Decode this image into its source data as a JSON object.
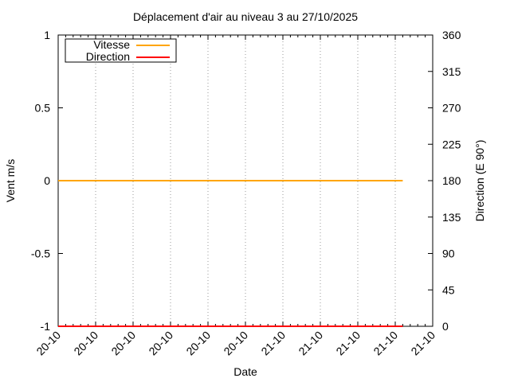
{
  "chart_data": {
    "type": "line",
    "title": "Déplacement d'air au niveau 3 au 27/10/2025",
    "xlabel": "Date",
    "ylabel": "Vent m/s",
    "y2label": "Direction (E 90°)",
    "x_tick_labels": [
      "20-10",
      "20-10",
      "20-10",
      "20-10",
      "20-10",
      "20-10",
      "21-10",
      "21-10",
      "21-10",
      "21-10",
      "21-10"
    ],
    "xlim": [
      0,
      10
    ],
    "ylim": [
      -1,
      1
    ],
    "y_ticks": [
      -1,
      -0.5,
      0,
      0.5,
      1
    ],
    "y_tick_labels": [
      "-1",
      "-0.5",
      "0",
      "0.5",
      "1"
    ],
    "y2lim": [
      0,
      360
    ],
    "y2_ticks": [
      0,
      45,
      90,
      135,
      180,
      225,
      270,
      315,
      360
    ],
    "grid": "vertical dotted at x major ticks",
    "legend_placement": "top-left",
    "series": [
      {
        "name": "Vitesse",
        "axis": "y",
        "color": "#ffa500",
        "x": [
          0,
          9.2
        ],
        "y": [
          0,
          0
        ]
      },
      {
        "name": "Direction",
        "axis": "y2",
        "color": "#ff0000",
        "x": [
          0,
          9.2
        ],
        "y": [
          0,
          0
        ]
      }
    ]
  }
}
